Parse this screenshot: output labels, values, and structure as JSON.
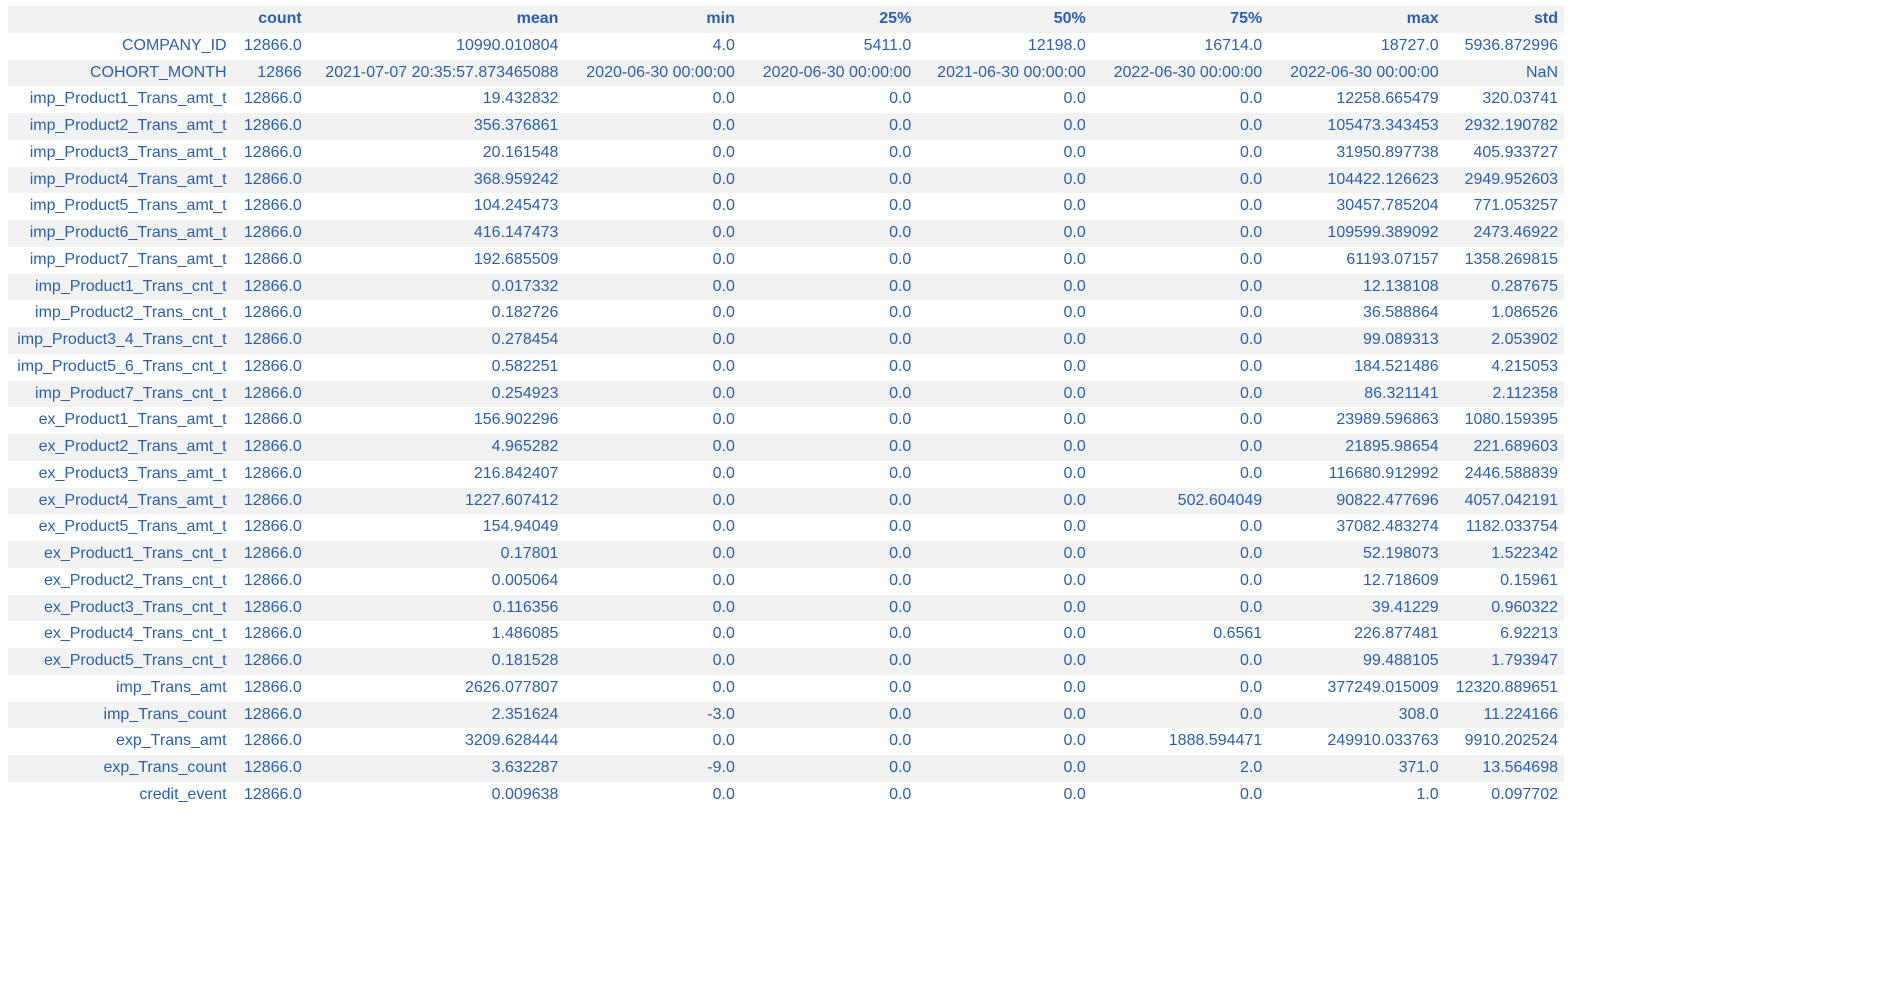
{
  "table": {
    "columns": [
      "",
      "count",
      "mean",
      "min",
      "25%",
      "50%",
      "75%",
      "max",
      "std"
    ],
    "rows": [
      [
        "COMPANY_ID",
        "12866.0",
        "10990.010804",
        "4.0",
        "5411.0",
        "12198.0",
        "16714.0",
        "18727.0",
        "5936.872996"
      ],
      [
        "COHORT_MONTH",
        "12866",
        "2021-07-07 20:35:57.873465088",
        "2020-06-30 00:00:00",
        "2020-06-30 00:00:00",
        "2021-06-30 00:00:00",
        "2022-06-30 00:00:00",
        "2022-06-30 00:00:00",
        "NaN"
      ],
      [
        "imp_Product1_Trans_amt_t",
        "12866.0",
        "19.432832",
        "0.0",
        "0.0",
        "0.0",
        "0.0",
        "12258.665479",
        "320.03741"
      ],
      [
        "imp_Product2_Trans_amt_t",
        "12866.0",
        "356.376861",
        "0.0",
        "0.0",
        "0.0",
        "0.0",
        "105473.343453",
        "2932.190782"
      ],
      [
        "imp_Product3_Trans_amt_t",
        "12866.0",
        "20.161548",
        "0.0",
        "0.0",
        "0.0",
        "0.0",
        "31950.897738",
        "405.933727"
      ],
      [
        "imp_Product4_Trans_amt_t",
        "12866.0",
        "368.959242",
        "0.0",
        "0.0",
        "0.0",
        "0.0",
        "104422.126623",
        "2949.952603"
      ],
      [
        "imp_Product5_Trans_amt_t",
        "12866.0",
        "104.245473",
        "0.0",
        "0.0",
        "0.0",
        "0.0",
        "30457.785204",
        "771.053257"
      ],
      [
        "imp_Product6_Trans_amt_t",
        "12866.0",
        "416.147473",
        "0.0",
        "0.0",
        "0.0",
        "0.0",
        "109599.389092",
        "2473.46922"
      ],
      [
        "imp_Product7_Trans_amt_t",
        "12866.0",
        "192.685509",
        "0.0",
        "0.0",
        "0.0",
        "0.0",
        "61193.07157",
        "1358.269815"
      ],
      [
        "imp_Product1_Trans_cnt_t",
        "12866.0",
        "0.017332",
        "0.0",
        "0.0",
        "0.0",
        "0.0",
        "12.138108",
        "0.287675"
      ],
      [
        "imp_Product2_Trans_cnt_t",
        "12866.0",
        "0.182726",
        "0.0",
        "0.0",
        "0.0",
        "0.0",
        "36.588864",
        "1.086526"
      ],
      [
        "imp_Product3_4_Trans_cnt_t",
        "12866.0",
        "0.278454",
        "0.0",
        "0.0",
        "0.0",
        "0.0",
        "99.089313",
        "2.053902"
      ],
      [
        "imp_Product5_6_Trans_cnt_t",
        "12866.0",
        "0.582251",
        "0.0",
        "0.0",
        "0.0",
        "0.0",
        "184.521486",
        "4.215053"
      ],
      [
        "imp_Product7_Trans_cnt_t",
        "12866.0",
        "0.254923",
        "0.0",
        "0.0",
        "0.0",
        "0.0",
        "86.321141",
        "2.112358"
      ],
      [
        "ex_Product1_Trans_amt_t",
        "12866.0",
        "156.902296",
        "0.0",
        "0.0",
        "0.0",
        "0.0",
        "23989.596863",
        "1080.159395"
      ],
      [
        "ex_Product2_Trans_amt_t",
        "12866.0",
        "4.965282",
        "0.0",
        "0.0",
        "0.0",
        "0.0",
        "21895.98654",
        "221.689603"
      ],
      [
        "ex_Product3_Trans_amt_t",
        "12866.0",
        "216.842407",
        "0.0",
        "0.0",
        "0.0",
        "0.0",
        "116680.912992",
        "2446.588839"
      ],
      [
        "ex_Product4_Trans_amt_t",
        "12866.0",
        "1227.607412",
        "0.0",
        "0.0",
        "0.0",
        "502.604049",
        "90822.477696",
        "4057.042191"
      ],
      [
        "ex_Product5_Trans_amt_t",
        "12866.0",
        "154.94049",
        "0.0",
        "0.0",
        "0.0",
        "0.0",
        "37082.483274",
        "1182.033754"
      ],
      [
        "ex_Product1_Trans_cnt_t",
        "12866.0",
        "0.17801",
        "0.0",
        "0.0",
        "0.0",
        "0.0",
        "52.198073",
        "1.522342"
      ],
      [
        "ex_Product2_Trans_cnt_t",
        "12866.0",
        "0.005064",
        "0.0",
        "0.0",
        "0.0",
        "0.0",
        "12.718609",
        "0.15961"
      ],
      [
        "ex_Product3_Trans_cnt_t",
        "12866.0",
        "0.116356",
        "0.0",
        "0.0",
        "0.0",
        "0.0",
        "39.41229",
        "0.960322"
      ],
      [
        "ex_Product4_Trans_cnt_t",
        "12866.0",
        "1.486085",
        "0.0",
        "0.0",
        "0.0",
        "0.6561",
        "226.877481",
        "6.92213"
      ],
      [
        "ex_Product5_Trans_cnt_t",
        "12866.0",
        "0.181528",
        "0.0",
        "0.0",
        "0.0",
        "0.0",
        "99.488105",
        "1.793947"
      ],
      [
        "imp_Trans_amt",
        "12866.0",
        "2626.077807",
        "0.0",
        "0.0",
        "0.0",
        "0.0",
        "377249.015009",
        "12320.889651"
      ],
      [
        "imp_Trans_count",
        "12866.0",
        "2.351624",
        "-3.0",
        "0.0",
        "0.0",
        "0.0",
        "308.0",
        "11.224166"
      ],
      [
        "exp_Trans_amt",
        "12866.0",
        "3209.628444",
        "0.0",
        "0.0",
        "0.0",
        "1888.594471",
        "249910.033763",
        "9910.202524"
      ],
      [
        "exp_Trans_count",
        "12866.0",
        "3.632287",
        "-9.0",
        "0.0",
        "0.0",
        "2.0",
        "371.0",
        "13.564698"
      ],
      [
        "credit_event",
        "12866.0",
        "0.009638",
        "0.0",
        "0.0",
        "0.0",
        "0.0",
        "1.0",
        "0.097702"
      ]
    ]
  },
  "colors": {
    "text": "#2a5fb0",
    "stripe": "#f2f2f2",
    "background": "#ffffff"
  }
}
